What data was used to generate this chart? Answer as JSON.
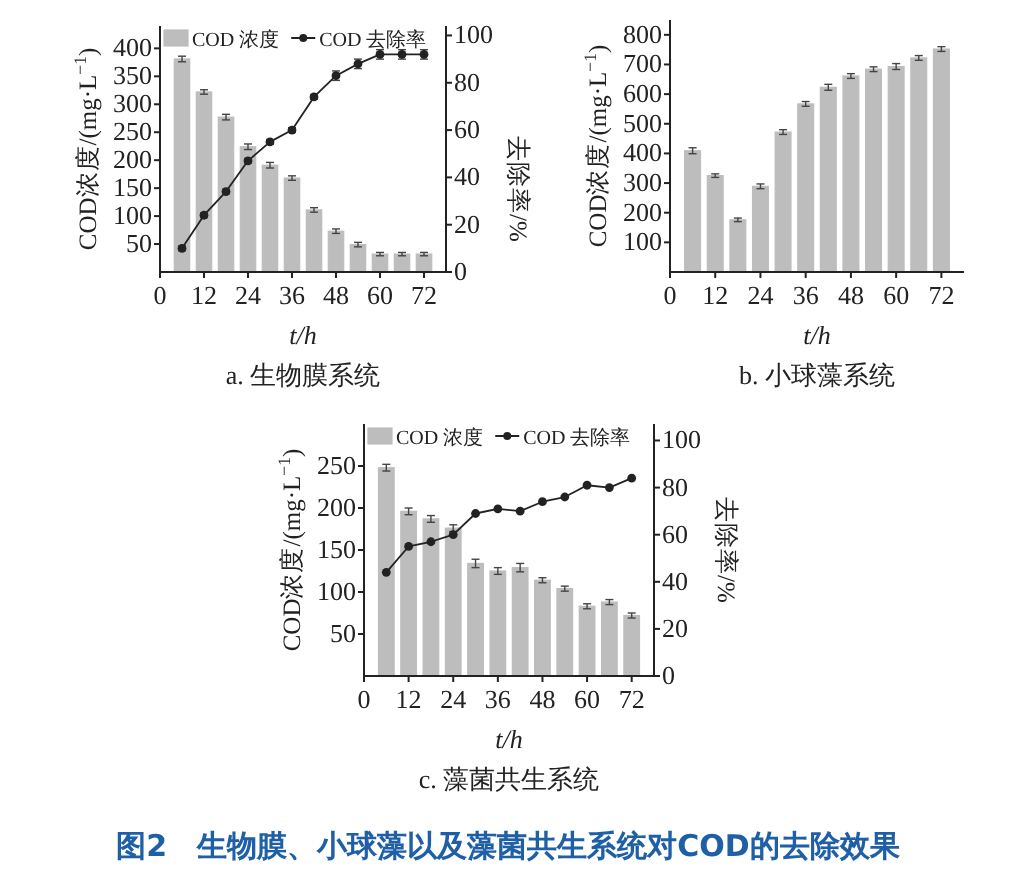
{
  "chart_data": [
    {
      "type": "bar",
      "title": "a. 生物膜系统",
      "xlabel": "t/h",
      "ylabel": "COD浓度/(mg·L$^{−1}$)",
      "y2label": "去除率/%",
      "x": [
        6,
        12,
        18,
        24,
        30,
        36,
        42,
        48,
        54,
        60,
        66,
        72
      ],
      "series": [
        {
          "name": "COD 浓度",
          "color": "#bdbdbd",
          "values": [
            381,
            322,
            277,
            224,
            191,
            168,
            111,
            73,
            49,
            32,
            32,
            32
          ],
          "errors": [
            5,
            4,
            5,
            5,
            5,
            4,
            4,
            4,
            4,
            3,
            3,
            3
          ]
        },
        {
          "name": "COD 去除率",
          "type": "line",
          "axis": "y2",
          "color": "#222222",
          "marker": "circle",
          "values": [
            10,
            24,
            34,
            47,
            55,
            60,
            74,
            83,
            88,
            92,
            92,
            92
          ],
          "errors": [
            1,
            1,
            1,
            1,
            1,
            1,
            1,
            2,
            2,
            2,
            2,
            2
          ]
        }
      ],
      "xlim": [
        0,
        78
      ],
      "xticks": [
        0,
        12,
        24,
        36,
        48,
        60,
        72
      ],
      "ylim": [
        0,
        440
      ],
      "yticks": [
        50,
        100,
        150,
        200,
        250,
        300,
        350,
        400
      ],
      "y2lim": [
        0,
        104
      ],
      "y2ticks": [
        0,
        20,
        40,
        60,
        80,
        100
      ],
      "legend": "top",
      "grid": false
    },
    {
      "type": "bar",
      "title": "b. 小球藻系统",
      "xlabel": "t/h",
      "ylabel": "COD浓度/(mg·L$^{−1}$)",
      "x": [
        6,
        12,
        18,
        24,
        30,
        36,
        42,
        48,
        54,
        60,
        66,
        72
      ],
      "series": [
        {
          "color": "#bdbdbd",
          "values": [
            409,
            325,
            176,
            289,
            472,
            567,
            623,
            661,
            684,
            693,
            722,
            752
          ],
          "errors": [
            10,
            6,
            6,
            8,
            8,
            8,
            10,
            8,
            8,
            10,
            8,
            8
          ]
        }
      ],
      "xlim": [
        0,
        78
      ],
      "xticks": [
        0,
        12,
        24,
        36,
        48,
        60,
        72
      ],
      "ylim": [
        0,
        850
      ],
      "yticks": [
        100,
        200,
        300,
        400,
        500,
        600,
        700,
        800
      ],
      "legend": false,
      "grid": false
    },
    {
      "type": "bar",
      "title": "c. 藻菌共生系统",
      "xlabel": "t/h",
      "ylabel": "COD浓度/(mg·L$^{−1}$)",
      "y2label": "去除率/%",
      "x": [
        6,
        12,
        18,
        24,
        30,
        36,
        42,
        48,
        54,
        60,
        66,
        72
      ],
      "series": [
        {
          "name": "COD 浓度",
          "color": "#bdbdbd",
          "values": [
            248,
            196,
            187,
            176,
            134,
            125,
            129,
            114,
            104,
            83,
            88,
            72
          ],
          "errors": [
            4,
            4,
            4,
            4,
            5,
            4,
            5,
            3,
            3,
            3,
            3,
            3
          ]
        },
        {
          "name": "COD 去除率",
          "type": "line",
          "axis": "y2",
          "color": "#222222",
          "marker": "circle",
          "values": [
            44,
            55,
            57,
            60,
            69,
            71,
            70,
            74,
            76,
            81,
            80,
            84
          ]
        }
      ],
      "xlim": [
        0,
        78
      ],
      "xticks": [
        0,
        12,
        24,
        36,
        48,
        60,
        72
      ],
      "ylim": [
        0,
        300
      ],
      "yticks": [
        50,
        100,
        150,
        200,
        250
      ],
      "y2lim": [
        0,
        107
      ],
      "y2ticks": [
        0,
        20,
        40,
        60,
        80,
        100
      ],
      "legend": "top",
      "grid": false,
      "annotations": [
        "图2　生物膜、小球藻以及藻菌共生系统对COD的去除效果"
      ]
    }
  ]
}
